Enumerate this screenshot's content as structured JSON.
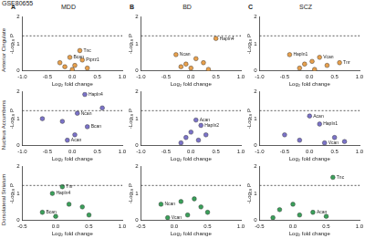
{
  "figure": {
    "dataset": "GSE80655",
    "columns": [
      {
        "letter": "A",
        "title": "MDD"
      },
      {
        "letter": "B",
        "title": "BD"
      },
      {
        "letter": "C",
        "title": "SCZ"
      }
    ],
    "rows": [
      "Anterior Cingulate",
      "Nucleus Accumbens",
      "Dorsolateral Striatum"
    ]
  },
  "chart_data": [
    {
      "type": "scatter",
      "color": "#e8a04c",
      "x_label": "Log₂ fold change",
      "y_label": "-Log₁₀ P",
      "threshold": 1.3,
      "xlim": [
        -1,
        1
      ],
      "xticks": [
        {
          "value": -1,
          "label": "-1.0"
        },
        {
          "value": -0.5,
          "label": "-0.5"
        },
        {
          "value": 0,
          "label": "0.0"
        },
        {
          "value": 0.5,
          "label": "0.5"
        },
        {
          "value": 1,
          "label": "1.0"
        }
      ],
      "ylim": [
        0,
        2
      ],
      "yticks": [
        0,
        1,
        2
      ],
      "x": [
        0.15,
        -0.05,
        0.2,
        -0.25,
        0.05,
        -0.15,
        0.3,
        0.0
      ],
      "values": [
        0.75,
        0.5,
        0.4,
        0.3,
        0.2,
        0.15,
        0.1,
        0.05
      ],
      "labels": [
        "Tnc",
        "Bcan",
        "Ptprz1",
        null,
        null,
        null,
        null,
        null
      ]
    },
    {
      "type": "scatter",
      "color": "#e8a04c",
      "x_label": "Log₂ fold change",
      "y_label": "-Log₁₀ P",
      "threshold": 1.3,
      "xlim": [
        -1,
        1
      ],
      "xticks": [
        {
          "value": -1,
          "label": "-1.0"
        },
        {
          "value": -0.5,
          "label": "-0.5"
        },
        {
          "value": 0,
          "label": "0.0"
        },
        {
          "value": 0.5,
          "label": "0.5"
        },
        {
          "value": 1,
          "label": "1.0"
        }
      ],
      "ylim": [
        0,
        2
      ],
      "yticks": [
        0,
        1,
        2
      ],
      "x": [
        0.5,
        -0.3,
        0.1,
        0.25,
        -0.1,
        0.0,
        -0.2,
        0.35
      ],
      "values": [
        1.2,
        0.6,
        0.45,
        0.3,
        0.25,
        0.1,
        0.15,
        0.05
      ],
      "labels": [
        "Hapln4",
        "Ncan",
        null,
        null,
        null,
        null,
        null,
        null
      ]
    },
    {
      "type": "scatter",
      "color": "#e8a04c",
      "x_label": "Log₂ fold change",
      "y_label": "-Log₁₀ P",
      "threshold": 1.3,
      "xlim": [
        -1,
        1
      ],
      "xticks": [
        {
          "value": -1,
          "label": "-1.0"
        },
        {
          "value": -0.5,
          "label": "-0.5"
        },
        {
          "value": 0,
          "label": "0.0"
        },
        {
          "value": 0.5,
          "label": "0.5"
        },
        {
          "value": 1,
          "label": "1.0"
        }
      ],
      "ylim": [
        0,
        2
      ],
      "yticks": [
        0,
        1,
        2
      ],
      "x": [
        -0.4,
        0.2,
        0.05,
        -0.1,
        0.35,
        -0.2,
        0.1,
        0.6
      ],
      "values": [
        0.6,
        0.5,
        0.35,
        0.25,
        0.2,
        0.1,
        0.05,
        0.3
      ],
      "labels": [
        "Hapln1",
        "Vcan",
        null,
        null,
        null,
        null,
        null,
        "Tnr"
      ]
    },
    {
      "type": "scatter",
      "color": "#7b73c9",
      "x_label": "Log₂ fold change",
      "y_label": "-Log₁₀ P",
      "threshold": 1.3,
      "xlim": [
        -1,
        1
      ],
      "xticks": [
        {
          "value": -1,
          "label": "-1.0"
        },
        {
          "value": -0.5,
          "label": "-0.5"
        },
        {
          "value": 0,
          "label": "0.0"
        },
        {
          "value": 0.5,
          "label": "0.5"
        },
        {
          "value": 1,
          "label": "1.0"
        }
      ],
      "ylim": [
        0,
        2
      ],
      "yticks": [
        0,
        1,
        2
      ],
      "x": [
        0.25,
        0.6,
        -0.6,
        0.1,
        -0.2,
        0.3,
        0.05,
        -0.1
      ],
      "values": [
        1.9,
        1.4,
        1.0,
        1.2,
        0.9,
        0.7,
        0.4,
        0.2
      ],
      "labels": [
        "Hapln4",
        null,
        null,
        "Ncan",
        null,
        "Bcan",
        null,
        "Acan"
      ]
    },
    {
      "type": "scatter",
      "color": "#7b73c9",
      "x_label": "Log₂ fold change",
      "y_label": "-Log₁₀ P",
      "threshold": 1.3,
      "xlim": [
        -1,
        1
      ],
      "xticks": [
        {
          "value": -1,
          "label": "-1.0"
        },
        {
          "value": -0.5,
          "label": "-0.5"
        },
        {
          "value": 0,
          "label": "0.0"
        },
        {
          "value": 0.5,
          "label": "0.5"
        },
        {
          "value": 1,
          "label": "1.0"
        }
      ],
      "ylim": [
        0,
        2
      ],
      "yticks": [
        0,
        1,
        2
      ],
      "x": [
        0.1,
        0.2,
        0.0,
        -0.1,
        0.15,
        -0.2,
        0.3
      ],
      "values": [
        0.95,
        0.75,
        0.5,
        0.3,
        0.2,
        0.1,
        0.4
      ],
      "labels": [
        "Acan",
        "Hapln2",
        null,
        null,
        null,
        null,
        null
      ]
    },
    {
      "type": "scatter",
      "color": "#7b73c9",
      "x_label": "Log₂ fold change",
      "y_label": "-Log₁₀ P",
      "threshold": 1.3,
      "xlim": [
        -1,
        1
      ],
      "xticks": [
        {
          "value": -1,
          "label": "-1.0"
        },
        {
          "value": -0.5,
          "label": "-0.5"
        },
        {
          "value": 0,
          "label": "0.0"
        },
        {
          "value": 0.5,
          "label": "0.5"
        },
        {
          "value": 1,
          "label": "1.0"
        }
      ],
      "ylim": [
        0,
        2
      ],
      "yticks": [
        0,
        1,
        2
      ],
      "x": [
        0.0,
        0.2,
        -0.5,
        0.5,
        0.3,
        -0.2,
        0.7
      ],
      "values": [
        1.1,
        0.8,
        0.4,
        0.3,
        0.1,
        0.2,
        0.15
      ],
      "labels": [
        "Acan",
        "Hapln1",
        null,
        null,
        "Vcan",
        null,
        null
      ]
    },
    {
      "type": "scatter",
      "color": "#3aa05a",
      "x_label": "Log₂ fold change",
      "y_label": "-Log₁₀ P",
      "threshold": 1.3,
      "xlim": [
        -0.5,
        1
      ],
      "xticks": [
        {
          "value": -0.5,
          "label": "-0.5"
        },
        {
          "value": 0,
          "label": "0.0"
        },
        {
          "value": 0.5,
          "label": "0.5"
        },
        {
          "value": 1,
          "label": "1.0"
        }
      ],
      "ylim": [
        0,
        2
      ],
      "yticks": [
        0,
        1,
        2
      ],
      "x": [
        0.1,
        -0.05,
        0.2,
        0.4,
        -0.2,
        0.5,
        0.0
      ],
      "values": [
        1.25,
        1.0,
        0.6,
        0.5,
        0.3,
        0.2,
        0.15
      ],
      "labels": [
        "Tnr",
        "Hapln4",
        null,
        null,
        "Bcan",
        null,
        null
      ]
    },
    {
      "type": "scatter",
      "color": "#3aa05a",
      "x_label": "Log₂ fold change",
      "y_label": "-Log₁₀ P",
      "threshold": 1.3,
      "xlim": [
        -0.5,
        1
      ],
      "xticks": [
        {
          "value": -0.5,
          "label": "-0.5"
        },
        {
          "value": 0,
          "label": "0.0"
        },
        {
          "value": 0.5,
          "label": "0.5"
        },
        {
          "value": 1,
          "label": "1.0"
        }
      ],
      "ylim": [
        0,
        2
      ],
      "yticks": [
        0,
        1,
        2
      ],
      "x": [
        0.3,
        0.1,
        -0.2,
        0.5,
        0.2,
        -0.1,
        0.4
      ],
      "values": [
        0.8,
        0.7,
        0.6,
        0.3,
        0.2,
        0.1,
        0.5
      ],
      "labels": [
        null,
        null,
        "Ncan",
        null,
        null,
        "Vcan",
        null
      ]
    },
    {
      "type": "scatter",
      "color": "#3aa05a",
      "x_label": "Log₂ fold change",
      "y_label": "-Log₁₀ P",
      "threshold": 1.3,
      "xlim": [
        -0.5,
        1
      ],
      "xticks": [
        {
          "value": -0.5,
          "label": "-0.5"
        },
        {
          "value": 0,
          "label": "0.0"
        },
        {
          "value": 0.5,
          "label": "0.5"
        },
        {
          "value": 1,
          "label": "1.0"
        }
      ],
      "ylim": [
        0,
        2
      ],
      "yticks": [
        0,
        1,
        2
      ],
      "x": [
        0.6,
        0.0,
        -0.2,
        0.3,
        0.1,
        0.5,
        -0.3
      ],
      "values": [
        1.6,
        0.6,
        0.4,
        0.3,
        0.2,
        0.15,
        0.1
      ],
      "labels": [
        "Tnc",
        null,
        null,
        "Acan",
        null,
        null,
        null
      ]
    }
  ]
}
